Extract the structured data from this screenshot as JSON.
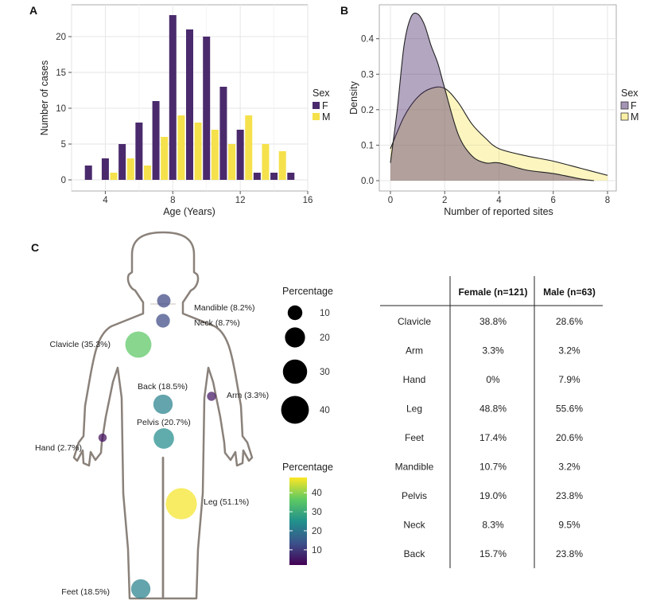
{
  "colors": {
    "female": "#4a2a6c",
    "male": "#f5e14b",
    "grid": "#e6e6e6",
    "panel_border": "#999999"
  },
  "panels": {
    "a": "A",
    "b": "B",
    "c": "C"
  },
  "chart_data": [
    {
      "type": "bar",
      "xlabel": "Age (Years)",
      "ylabel": "Number of cases",
      "xlim": [
        2,
        16
      ],
      "ylim": [
        0,
        24
      ],
      "x_ticks": [
        4,
        8,
        12,
        16
      ],
      "y_ticks": [
        0,
        5,
        10,
        15,
        20
      ],
      "legend_title": "Sex",
      "legend_position": "right",
      "grid": true,
      "series": [
        {
          "name": "F",
          "color": "#4a2a6c",
          "points": [
            [
              3,
              2
            ],
            [
              4,
              3
            ],
            [
              5,
              5
            ],
            [
              6,
              8
            ],
            [
              7,
              11
            ],
            [
              8,
              23
            ],
            [
              9,
              21
            ],
            [
              10,
              20
            ],
            [
              11,
              13
            ],
            [
              12,
              7
            ],
            [
              13,
              1
            ],
            [
              14,
              1
            ],
            [
              15,
              1
            ]
          ]
        },
        {
          "name": "M",
          "color": "#f5e14b",
          "points": [
            [
              4,
              1
            ],
            [
              5,
              3
            ],
            [
              6,
              2
            ],
            [
              7,
              6
            ],
            [
              8,
              9
            ],
            [
              9,
              8
            ],
            [
              10,
              7
            ],
            [
              11,
              5
            ],
            [
              12,
              9
            ],
            [
              13,
              5
            ],
            [
              14,
              4
            ]
          ]
        }
      ]
    },
    {
      "type": "area",
      "xlabel": "Number of reported sites",
      "ylabel": "Density",
      "xlim": [
        0,
        8
      ],
      "ylim": [
        0,
        0.48
      ],
      "x_ticks": [
        0,
        2,
        4,
        6,
        8
      ],
      "y_ticks": [
        0.0,
        0.1,
        0.2,
        0.3,
        0.4
      ],
      "y_tick_labels": [
        "0.0",
        "0.1",
        "0.2",
        "0.3",
        "0.4"
      ],
      "legend_title": "Sex",
      "legend_position": "right",
      "grid": true,
      "series": [
        {
          "name": "F",
          "color": "#4a2a6c",
          "x": [
            0,
            0.25,
            0.5,
            0.75,
            1.0,
            1.25,
            1.5,
            1.75,
            2.0,
            2.5,
            3.0,
            3.5,
            4.0,
            5.0,
            6.0,
            7.0,
            7.5
          ],
          "y": [
            0.05,
            0.2,
            0.38,
            0.46,
            0.47,
            0.44,
            0.38,
            0.33,
            0.26,
            0.13,
            0.07,
            0.05,
            0.05,
            0.03,
            0.02,
            0.005,
            0.0
          ]
        },
        {
          "name": "M",
          "color": "#f5e14b",
          "x": [
            0,
            0.5,
            1.0,
            1.5,
            2.0,
            2.5,
            3.0,
            3.5,
            4.0,
            5.0,
            6.0,
            7.0,
            8.0
          ],
          "y": [
            0.09,
            0.18,
            0.235,
            0.26,
            0.26,
            0.22,
            0.16,
            0.12,
            0.09,
            0.07,
            0.055,
            0.035,
            0.015
          ]
        }
      ]
    },
    {
      "type": "scatter",
      "body_sites": [
        {
          "label": "Mandible (8.2%)",
          "pct": 8.2
        },
        {
          "label": "Neck (8.7%)",
          "pct": 8.7
        },
        {
          "label": "Clavicle (35.3%)",
          "pct": 35.3
        },
        {
          "label": "Back (18.5%)",
          "pct": 18.5
        },
        {
          "label": "Arm (3.3%)",
          "pct": 3.3
        },
        {
          "label": "Pelvis (20.7%)",
          "pct": 20.7
        },
        {
          "label": "Hand (2.7%)",
          "pct": 2.7
        },
        {
          "label": "Leg (51.1%)",
          "pct": 51.1
        },
        {
          "label": "Feet (18.5%)",
          "pct": 18.5
        }
      ],
      "size_legend": {
        "title": "Percentage",
        "values": [
          10,
          20,
          30,
          40
        ]
      },
      "color_legend": {
        "title": "Percentage",
        "ticks": [
          10,
          20,
          30,
          40
        ],
        "range": [
          2,
          52
        ]
      }
    },
    {
      "type": "table",
      "columns": [
        "",
        "Female (n=121)",
        "Male (n=63)"
      ],
      "rows": [
        [
          "Clavicle",
          "38.8%",
          "28.6%"
        ],
        [
          "Arm",
          "3.3%",
          "3.2%"
        ],
        [
          "Hand",
          "0%",
          "7.9%"
        ],
        [
          "Leg",
          "48.8%",
          "55.6%"
        ],
        [
          "Feet",
          "17.4%",
          "20.6%"
        ],
        [
          "Mandible",
          "10.7%",
          "3.2%"
        ],
        [
          "Pelvis",
          "19.0%",
          "23.8%"
        ],
        [
          "Neck",
          "8.3%",
          "9.5%"
        ],
        [
          "Back",
          "15.7%",
          "23.8%"
        ]
      ]
    }
  ]
}
